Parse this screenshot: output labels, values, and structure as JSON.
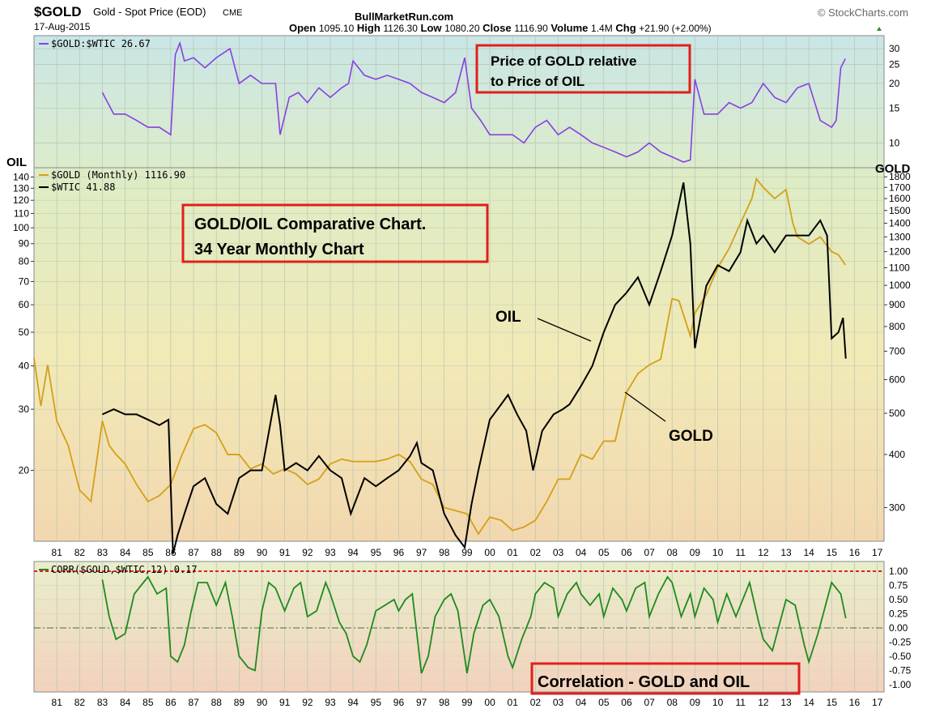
{
  "header": {
    "symbol": "$GOLD",
    "description": "Gold - Spot Price (EOD)",
    "exchange": "CME",
    "date": "17-Aug-2015",
    "site": "BullMarketRun.com",
    "watermark": "© StockCharts.com",
    "open_label": "Open",
    "open": "1095.10",
    "high_label": "High",
    "high": "1126.30",
    "low_label": "Low",
    "low": "1080.20",
    "close_label": "Close",
    "close": "1116.90",
    "volume_label": "Volume",
    "volume": "1.4M",
    "chg_label": "Chg",
    "chg": "+21.90 (+2.00%)"
  },
  "annotations": {
    "ratio_box_line1": "Price of GOLD relative",
    "ratio_box_line2": "to Price of OIL",
    "main_box_line1": "GOLD/OIL Comparative Chart.",
    "main_box_line2": "34 Year Monthly Chart",
    "oil_label": "OIL",
    "gold_label": "GOLD",
    "corr_box": "Correlation - GOLD and OIL",
    "left_axis_title": "OIL",
    "right_axis_title": "GOLD"
  },
  "colors": {
    "gold": "#d4a017",
    "oil": "#000000",
    "ratio": "#8a3fe0",
    "corr": "#1e8a1e",
    "annotation_box": "#e0201c",
    "dotted_red": "#e02020",
    "zero_line": "#2e7d2e"
  },
  "chart_data": [
    {
      "type": "line",
      "panel": "ratio",
      "legend": "$GOLD:$WTIC 26.67",
      "yscale": "log",
      "ylim": [
        8,
        33
      ],
      "yticks": [
        10,
        15,
        20,
        25,
        30
      ],
      "series": [
        {
          "name": "$GOLD:$WTIC",
          "x": [
            1983.0,
            1983.5,
            1984.0,
            1984.5,
            1985.0,
            1985.5,
            1986.0,
            1986.2,
            1986.4,
            1986.6,
            1987.0,
            1987.5,
            1988.0,
            1988.6,
            1989.0,
            1989.5,
            1990.0,
            1990.6,
            1990.8,
            1991.2,
            1991.6,
            1992.0,
            1992.5,
            1993.0,
            1993.5,
            1993.8,
            1994.0,
            1994.5,
            1995.0,
            1995.5,
            1996.0,
            1996.5,
            1997.0,
            1997.5,
            1998.0,
            1998.5,
            1998.9,
            1999.2,
            1999.6,
            2000.0,
            2000.5,
            2001.0,
            2001.5,
            2002.0,
            2002.5,
            2003.0,
            2003.5,
            2004.0,
            2004.5,
            2005.0,
            2005.5,
            2006.0,
            2006.5,
            2007.0,
            2007.5,
            2008.0,
            2008.5,
            2008.8,
            2009.0,
            2009.4,
            2010.0,
            2010.5,
            2011.0,
            2011.5,
            2012.0,
            2012.5,
            2013.0,
            2013.5,
            2014.0,
            2014.5,
            2015.0,
            2015.2,
            2015.4,
            2015.6
          ],
          "values": [
            18,
            14,
            14,
            13,
            12,
            12,
            11,
            28,
            32,
            26,
            27,
            24,
            27,
            30,
            20,
            22,
            20,
            20,
            11,
            17,
            18,
            16,
            19,
            17,
            19,
            20,
            26,
            22,
            21,
            22,
            21,
            20,
            18,
            17,
            16,
            18,
            27,
            15,
            13,
            11,
            11,
            11,
            10,
            12,
            13,
            11,
            12,
            11,
            10,
            9.5,
            9,
            8.5,
            9,
            10,
            9,
            8.5,
            8,
            8.2,
            21,
            14,
            14,
            16,
            15,
            16,
            20,
            17,
            16,
            19,
            20,
            13,
            12,
            13,
            24,
            26.67
          ]
        }
      ]
    },
    {
      "type": "line",
      "panel": "main",
      "title": "GOLD/OIL Comparative Chart. 34 Year Monthly Chart",
      "legend": [
        "$GOLD (Monthly) 1116.90",
        "$WTIC 41.88"
      ],
      "xlim": [
        1980.0,
        2017.3
      ],
      "x_tick_labels": [
        "81",
        "82",
        "83",
        "84",
        "85",
        "86",
        "87",
        "88",
        "89",
        "90",
        "91",
        "92",
        "93",
        "94",
        "95",
        "96",
        "97",
        "98",
        "99",
        "00",
        "01",
        "02",
        "03",
        "04",
        "05",
        "06",
        "07",
        "08",
        "09",
        "10",
        "11",
        "12",
        "13",
        "14",
        "15",
        "16",
        "17"
      ],
      "y_left": {
        "label": "OIL",
        "scale": "log",
        "ticks": [
          20,
          30,
          40,
          50,
          60,
          70,
          80,
          90,
          100,
          110,
          120,
          130,
          140
        ]
      },
      "y_right": {
        "label": "GOLD",
        "scale": "log",
        "ticks": [
          300,
          400,
          500,
          600,
          700,
          800,
          900,
          1000,
          1100,
          1200,
          1300,
          1400,
          1500,
          1600,
          1700,
          1800
        ]
      },
      "series": [
        {
          "name": "$GOLD (Monthly)",
          "axis": "right",
          "x": [
            1980.0,
            1980.3,
            1980.6,
            1981.0,
            1981.5,
            1982.0,
            1982.5,
            1983.0,
            1983.3,
            1983.6,
            1984.0,
            1984.5,
            1985.0,
            1985.5,
            1986.0,
            1986.5,
            1987.0,
            1987.5,
            1988.0,
            1988.5,
            1989.0,
            1989.5,
            1990.0,
            1990.5,
            1991.0,
            1991.5,
            1992.0,
            1992.5,
            1993.0,
            1993.5,
            1994.0,
            1994.5,
            1995.0,
            1995.5,
            1996.0,
            1996.5,
            1997.0,
            1997.5,
            1998.0,
            1998.5,
            1999.0,
            1999.5,
            2000.0,
            2000.5,
            2001.0,
            2001.5,
            2002.0,
            2002.5,
            2003.0,
            2003.5,
            2004.0,
            2004.5,
            2005.0,
            2005.5,
            2006.0,
            2006.5,
            2007.0,
            2007.5,
            2008.0,
            2008.3,
            2008.8,
            2009.0,
            2009.5,
            2010.0,
            2010.5,
            2011.0,
            2011.5,
            2011.7,
            2012.0,
            2012.5,
            2013.0,
            2013.3,
            2013.5,
            2014.0,
            2014.5,
            2015.0,
            2015.3,
            2015.6
          ],
          "values": [
            675,
            520,
            650,
            480,
            420,
            330,
            310,
            480,
            420,
            400,
            380,
            340,
            310,
            320,
            340,
            400,
            460,
            470,
            450,
            400,
            400,
            370,
            380,
            360,
            370,
            360,
            340,
            350,
            380,
            390,
            385,
            385,
            385,
            390,
            400,
            385,
            350,
            340,
            300,
            295,
            290,
            260,
            285,
            280,
            265,
            270,
            280,
            310,
            350,
            350,
            400,
            390,
            430,
            430,
            560,
            620,
            650,
            670,
            930,
            920,
            760,
            860,
            950,
            1100,
            1220,
            1400,
            1600,
            1780,
            1700,
            1600,
            1680,
            1400,
            1300,
            1250,
            1300,
            1200,
            1180,
            1116.9
          ]
        },
        {
          "name": "$WTIC",
          "axis": "left",
          "x": [
            1983.0,
            1983.5,
            1984.0,
            1984.5,
            1985.0,
            1985.5,
            1985.9,
            1986.1,
            1986.3,
            1986.6,
            1987.0,
            1987.5,
            1988.0,
            1988.5,
            1989.0,
            1989.5,
            1990.0,
            1990.6,
            1990.8,
            1991.0,
            1991.5,
            1992.0,
            1992.5,
            1993.0,
            1993.5,
            1993.9,
            1994.5,
            1995.0,
            1995.5,
            1996.0,
            1996.5,
            1996.8,
            1997.0,
            1997.5,
            1998.0,
            1998.5,
            1998.9,
            1999.2,
            1999.5,
            2000.0,
            2000.5,
            2000.8,
            2001.2,
            2001.6,
            2001.9,
            2002.3,
            2002.8,
            2003.2,
            2003.5,
            2004.0,
            2004.5,
            2005.0,
            2005.5,
            2006.0,
            2006.5,
            2007.0,
            2007.5,
            2008.0,
            2008.5,
            2008.8,
            2009.0,
            2009.5,
            2010.0,
            2010.5,
            2011.0,
            2011.3,
            2011.7,
            2012.0,
            2012.5,
            2013.0,
            2013.5,
            2014.0,
            2014.5,
            2014.8,
            2015.0,
            2015.3,
            2015.5,
            2015.62
          ],
          "values": [
            29,
            30,
            29,
            29,
            28,
            27,
            28,
            11.5,
            13,
            15,
            18,
            19,
            16,
            15,
            19,
            20,
            20,
            33,
            27,
            20,
            21,
            20,
            22,
            20,
            19,
            15,
            19,
            18,
            19,
            20,
            22,
            24,
            21,
            20,
            15,
            13,
            12,
            16,
            20,
            28,
            31,
            33,
            29,
            26,
            20,
            26,
            29,
            30,
            31,
            35,
            40,
            50,
            60,
            65,
            72,
            60,
            75,
            95,
            135,
            90,
            45,
            68,
            78,
            75,
            85,
            105,
            90,
            95,
            85,
            95,
            95,
            95,
            105,
            95,
            48,
            50,
            55,
            42
          ]
        }
      ]
    },
    {
      "type": "line",
      "panel": "correlation",
      "legend": "CORR($GOLD,$WTIC,12) 0.17",
      "ylim": [
        -1.0,
        1.0
      ],
      "yticks": [
        1.0,
        0.75,
        0.5,
        0.25,
        0.0,
        -0.25,
        -0.5,
        -0.75,
        -1.0
      ],
      "ytick_labels": [
        "1.00",
        "0.75",
        "0.50",
        "0.25",
        "0.00",
        "-0.25",
        "-0.50",
        "-0.75",
        "-1.00"
      ],
      "reference_lines": [
        1.0,
        0.0
      ],
      "series": [
        {
          "name": "CORR($GOLD,$WTIC,12)",
          "x": [
            1983.0,
            1983.3,
            1983.6,
            1984.0,
            1984.4,
            1984.8,
            1985.0,
            1985.4,
            1985.8,
            1986.0,
            1986.3,
            1986.6,
            1986.9,
            1987.2,
            1987.6,
            1988.0,
            1988.4,
            1988.7,
            1989.0,
            1989.4,
            1989.7,
            1990.0,
            1990.3,
            1990.6,
            1991.0,
            1991.4,
            1991.7,
            1992.0,
            1992.4,
            1992.8,
            1993.0,
            1993.4,
            1993.7,
            1994.0,
            1994.3,
            1994.6,
            1995.0,
            1995.4,
            1995.8,
            1996.0,
            1996.3,
            1996.6,
            1997.0,
            1997.3,
            1997.6,
            1998.0,
            1998.3,
            1998.6,
            1999.0,
            1999.3,
            1999.7,
            2000.0,
            2000.4,
            2000.8,
            2001.0,
            2001.4,
            2001.8,
            2002.0,
            2002.4,
            2002.8,
            2003.0,
            2003.4,
            2003.8,
            2004.0,
            2004.4,
            2004.8,
            2005.0,
            2005.4,
            2005.8,
            2006.0,
            2006.4,
            2006.8,
            2007.0,
            2007.4,
            2007.8,
            2008.0,
            2008.4,
            2008.8,
            2009.0,
            2009.4,
            2009.8,
            2010.0,
            2010.4,
            2010.8,
            2011.0,
            2011.4,
            2011.8,
            2012.0,
            2012.4,
            2012.8,
            2013.0,
            2013.4,
            2013.8,
            2014.0,
            2014.4,
            2014.8,
            2015.0,
            2015.4,
            2015.62
          ],
          "values": [
            0.85,
            0.2,
            -0.2,
            -0.1,
            0.6,
            0.8,
            0.9,
            0.6,
            0.7,
            -0.5,
            -0.6,
            -0.3,
            0.3,
            0.8,
            0.8,
            0.4,
            0.8,
            0.2,
            -0.5,
            -0.7,
            -0.75,
            0.3,
            0.8,
            0.7,
            0.3,
            0.7,
            0.8,
            0.2,
            0.3,
            0.8,
            0.6,
            0.1,
            -0.1,
            -0.5,
            -0.6,
            -0.3,
            0.3,
            0.4,
            0.5,
            0.3,
            0.5,
            0.6,
            -0.8,
            -0.5,
            0.2,
            0.5,
            0.6,
            0.3,
            -0.8,
            -0.1,
            0.4,
            0.5,
            0.2,
            -0.5,
            -0.7,
            -0.2,
            0.2,
            0.6,
            0.8,
            0.7,
            0.2,
            0.6,
            0.8,
            0.6,
            0.4,
            0.6,
            0.2,
            0.7,
            0.5,
            0.3,
            0.7,
            0.8,
            0.2,
            0.6,
            0.9,
            0.8,
            0.2,
            0.6,
            0.2,
            0.7,
            0.5,
            0.1,
            0.6,
            0.2,
            0.4,
            0.8,
            0.1,
            -0.2,
            -0.4,
            0.2,
            0.5,
            0.4,
            -0.3,
            -0.6,
            -0.1,
            0.5,
            0.8,
            0.6,
            0.17
          ]
        }
      ]
    }
  ]
}
